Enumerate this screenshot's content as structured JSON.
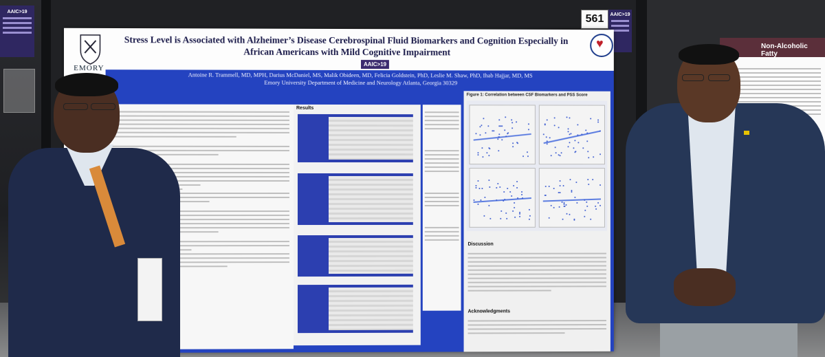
{
  "poster": {
    "title": "Stress Level is Associated with Alzheimer’s Disease Cerebrospinal Fluid Biomarkers and Cognition Especially in African Americans with Mild Cognitive Impairment",
    "authors": "Antoine R. Trammell, MD, MPH, Darius McDaniel, MS, Malik Obideen, MD, Felicia Goldstein, PhD, Leslie M. Shaw, PhD, Ihab Hajjar, MD, MS",
    "affiliation": "Emory University Department of Medicine and Neurology Atlanta, Georgia 30329",
    "institution": "EMORY",
    "conference_badge": "AAIC>19",
    "results_heading": "Results",
    "figure_title": "Figure 1: Correlation between CSF Biomarkers and PSS Score",
    "discussion_heading": "Discussion",
    "acknowledgments_heading": "Acknowledgments"
  },
  "booth_number": "561",
  "signs": {
    "left": "AAIC>19",
    "middle": "AAIC>19"
  },
  "neighbor_poster": {
    "title": "Non-Alcoholic Fatty"
  },
  "colors": {
    "poster_band": "#2443c0",
    "aaic_purple": "#2f2761",
    "tie": "#d98a3a",
    "suit": "#1f2a4a"
  }
}
